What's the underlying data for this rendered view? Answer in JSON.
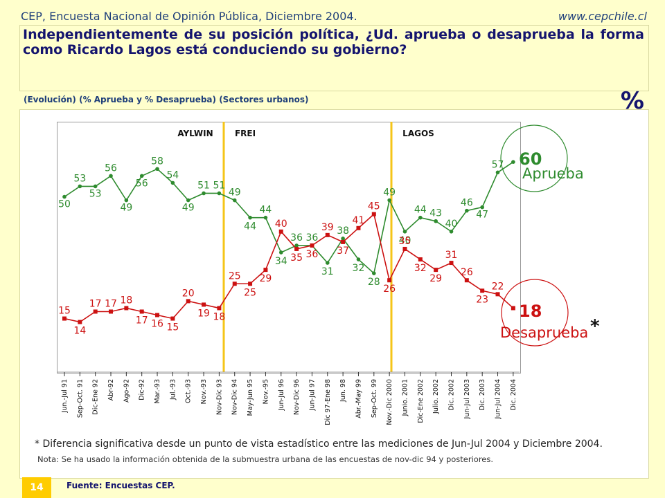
{
  "header": {
    "source_line": "CEP, Encuesta Nacional de Opinión Pública, Diciembre 2004.",
    "website": "www.cepchile.cl"
  },
  "question": "Independientemente de su posición política, ¿Ud. aprueba o desaprueba la forma como Ricardo Lagos está conduciendo su gobierno?",
  "subtitle": "(Evolución)   (% Aprueba y % Desaprueba) (Sectores urbanos)",
  "percent_symbol": "%",
  "footnote": "* Diferencia significativa desde un punto de vista estadístico entre las mediciones de Jun-Jul 2004 y Diciembre 2004.",
  "note": "Nota: Se ha usado la información obtenida de la submuestra urbana de las encuestas de nov-dic 94 y posteriores.",
  "page_number": "14",
  "source": "Fuente: Encuestas CEP.",
  "colors": {
    "aprueba": "#2e8b2e",
    "desaprueba": "#cc1111",
    "period_line": "#f5c518",
    "navy": "#14146e"
  },
  "chart_data": {
    "type": "line",
    "categories": [
      "Jun.-Jul 91",
      "Sep-Oct. 91",
      "Dic-Ene 92",
      "Abr-92",
      "Ago-92",
      "Dic-92",
      "Mar.-93",
      "Jul.-93",
      "Oct.-93",
      "Nov.-93",
      "Nov-Dic 93",
      "Nov-Dic 94",
      "May-Jun 95",
      "Nov.-95",
      "Jun-Jul 96",
      "Nov-Dic 96",
      "Jun-Jul 97",
      "Dic 97-Ene 98",
      "Jun. 98",
      "Abr.-May 99",
      "Sep-Oct. 99",
      "Nov.-Dic 2000",
      "Junio. 2001",
      "Dic-Ene 2002",
      "Julio. 2002",
      "Dic. 2002",
      "Jun-Jul 2003",
      "Dic. 2003",
      "Jun-Jul 2004",
      "Dic. 2004"
    ],
    "series": [
      {
        "name": "Aprueba",
        "values": [
          50,
          53,
          53,
          56,
          49,
          56,
          58,
          54,
          49,
          51,
          51,
          49,
          44,
          44,
          34,
          36,
          36,
          31,
          38,
          32,
          28,
          49,
          40,
          44,
          43,
          40,
          46,
          47,
          57,
          60
        ]
      },
      {
        "name": "Desaprueba",
        "values": [
          15,
          14,
          17,
          17,
          18,
          17,
          16,
          15,
          20,
          19,
          18,
          25,
          25,
          29,
          40,
          35,
          36,
          39,
          37,
          41,
          45,
          26,
          35,
          32,
          29,
          31,
          26,
          23,
          22,
          18
        ]
      }
    ],
    "periods": [
      "AYLWIN",
      "FREI",
      "LAGOS"
    ],
    "final_labels": {
      "aprueba": "Aprueba",
      "desaprueba": "Desaprueba",
      "significance_mark": "*"
    },
    "ylim": [
      0,
      70
    ]
  }
}
